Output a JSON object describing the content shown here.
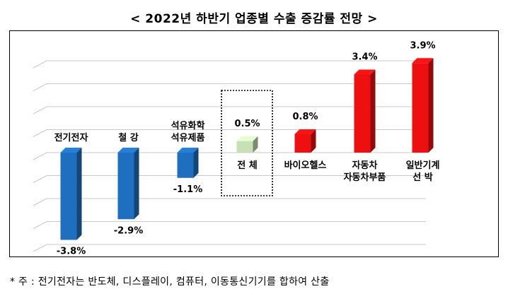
{
  "title": "< 2022년 하반기 업종별 수출 증감률 전망 >",
  "footnote": "* 주 : 전기전자는 반도체, 디스플레이, 컴퓨터, 이동통신기기를 합하여 산출",
  "colors": {
    "negative": "#1f6fc0",
    "positive": "#ee1010",
    "total": "#c7e0b4",
    "highlight_border": "#000000",
    "grid": "#c8c8c8"
  },
  "chart_data": {
    "type": "bar",
    "title": "< 2022년 하반기 업종별 수출 증감률 전망 >",
    "xlabel": "",
    "ylabel": "",
    "ylim": [
      -4.5,
      5.0
    ],
    "grid": true,
    "legend": "none",
    "categories": [
      [
        "전기전자"
      ],
      [
        "철 강"
      ],
      [
        "석유화학",
        "석유제품"
      ],
      [
        "전 체"
      ],
      [
        "바이오헬스"
      ],
      [
        "자동차",
        "자동차부품"
      ],
      [
        "일반기계",
        "선  박"
      ]
    ],
    "values": [
      -3.8,
      -2.9,
      -1.1,
      0.5,
      0.8,
      3.4,
      3.9
    ],
    "value_labels": [
      "-3.8%",
      "-2.9%",
      "-1.1%",
      "0.5%",
      "0.8%",
      "3.4%",
      "3.9%"
    ],
    "highlighted": "전 체"
  }
}
